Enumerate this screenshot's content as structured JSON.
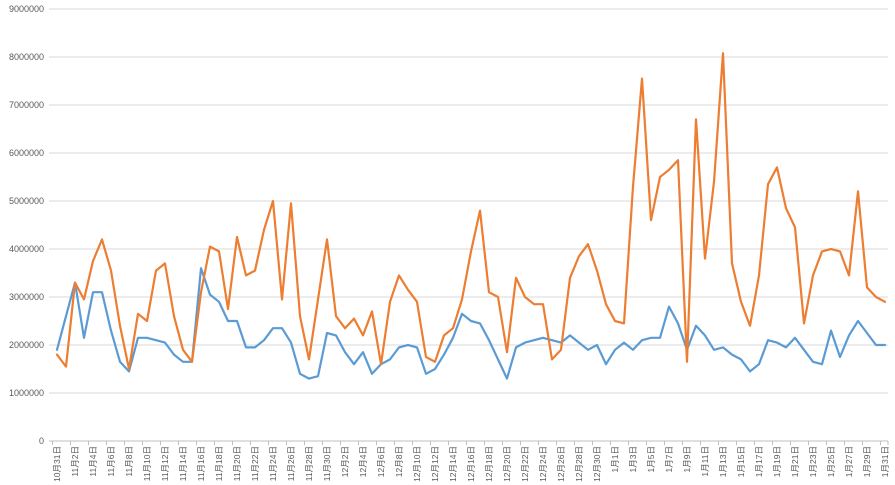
{
  "chart_data": {
    "type": "line",
    "title": "",
    "xlabel": "",
    "ylabel": "",
    "ylim": [
      0,
      9000000
    ],
    "y_tick_interval": 1000000,
    "y_tick_labels": [
      "0",
      "1000000",
      "2000000",
      "3000000",
      "4000000",
      "5000000",
      "6000000",
      "7000000",
      "8000000",
      "9000000"
    ],
    "x_label_interval": 2,
    "x_tick_labels": [
      "10月31日",
      "11月2日",
      "11月4日",
      "11月6日",
      "11月8日",
      "11月10日",
      "11月12日",
      "11月14日",
      "11月16日",
      "11月18日",
      "11月20日",
      "11月22日",
      "11月24日",
      "11月26日",
      "11月28日",
      "11月30日",
      "12月2日",
      "12月4日",
      "12月6日",
      "12月8日",
      "12月10日",
      "12月12日",
      "12月14日",
      "12月16日",
      "12月18日",
      "12月20日",
      "12月22日",
      "12月24日",
      "12月26日",
      "12月28日",
      "12月30日",
      "1月1日",
      "1月3日",
      "1月5日",
      "1月7日",
      "1月9日",
      "1月11日",
      "1月13日",
      "1月15日",
      "1月17日",
      "1月19日",
      "1月21日",
      "1月23日",
      "1月25日",
      "1月27日",
      "1月29日",
      "1月31日"
    ],
    "grid": true,
    "legend": "none",
    "colors": {
      "series_1": "#5B9BD5",
      "series_2": "#ED7D31",
      "gridline": "#D9D9D9",
      "axis_line": "#BFBFBF",
      "axis_text": "#595959",
      "background": "#FFFFFF"
    },
    "series": [
      {
        "name": "series_1_blue",
        "color": "#5B9BD5",
        "values": [
          1900000,
          2600000,
          3300000,
          2150000,
          3100000,
          3100000,
          2300000,
          1650000,
          1450000,
          2150000,
          2150000,
          2100000,
          2050000,
          1800000,
          1650000,
          1650000,
          3600000,
          3050000,
          2900000,
          2500000,
          2500000,
          1950000,
          1950000,
          2100000,
          2350000,
          2350000,
          2050000,
          1400000,
          1300000,
          1350000,
          2250000,
          2200000,
          1850000,
          1600000,
          1850000,
          1400000,
          1600000,
          1700000,
          1950000,
          2000000,
          1950000,
          1400000,
          1500000,
          1800000,
          2150000,
          2650000,
          2500000,
          2450000,
          2100000,
          1700000,
          1300000,
          1950000,
          2050000,
          2100000,
          2150000,
          2100000,
          2050000,
          2200000,
          2050000,
          1900000,
          2000000,
          1600000,
          1900000,
          2050000,
          1900000,
          2100000,
          2150000,
          2150000,
          2800000,
          2450000,
          1900000,
          2400000,
          2200000,
          1900000,
          1950000,
          1800000,
          1700000,
          1450000,
          1600000,
          2100000,
          2050000,
          1950000,
          2150000,
          1900000,
          1650000,
          1600000,
          2300000,
          1750000,
          2200000,
          2500000,
          2250000,
          2000000,
          2000000
        ]
      },
      {
        "name": "series_2_orange",
        "color": "#ED7D31",
        "values": [
          1800000,
          1550000,
          3300000,
          2950000,
          3750000,
          4200000,
          3550000,
          2400000,
          1500000,
          2650000,
          2500000,
          3550000,
          3700000,
          2600000,
          1900000,
          1650000,
          3100000,
          4050000,
          3950000,
          2750000,
          4250000,
          3450000,
          3550000,
          4400000,
          5000000,
          2950000,
          4950000,
          2600000,
          1700000,
          2950000,
          4200000,
          2600000,
          2350000,
          2550000,
          2200000,
          2700000,
          1600000,
          2900000,
          3450000,
          3150000,
          2900000,
          1750000,
          1650000,
          2200000,
          2350000,
          2950000,
          3950000,
          4800000,
          3100000,
          3000000,
          1850000,
          3400000,
          3000000,
          2850000,
          2850000,
          1700000,
          1900000,
          3400000,
          3850000,
          4100000,
          3550000,
          2850000,
          2500000,
          2450000,
          5300000,
          7550000,
          4600000,
          5500000,
          5650000,
          5850000,
          1650000,
          6700000,
          3800000,
          5400000,
          8080000,
          3700000,
          2900000,
          2400000,
          3450000,
          5350000,
          5700000,
          4850000,
          4450000,
          2450000,
          3450000,
          3950000,
          4000000,
          3950000,
          3450000,
          5200000,
          3200000,
          3000000,
          2900000
        ]
      }
    ]
  }
}
